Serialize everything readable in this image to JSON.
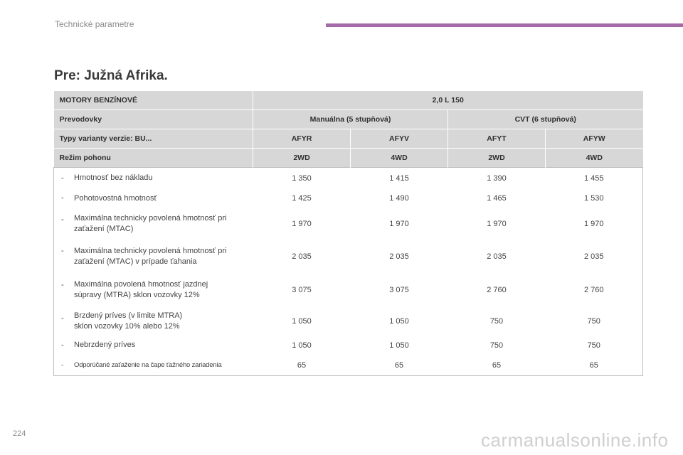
{
  "header": {
    "section": "Technické parametre",
    "accent_color": "#a56aa8"
  },
  "heading": "Pre: Južná Afrika.",
  "table": {
    "engine_label": "MOTORY BENZÍNOVÉ",
    "engine_value": "2,0 L 150",
    "gearbox_label": "Prevodovky",
    "gearboxes": [
      "Manuálna (5 stupňová)",
      "CVT (6 stupňová)"
    ],
    "variant_label": "Typy varianty verzie: BU...",
    "variants": [
      "AFYR",
      "AFYV",
      "AFYT",
      "AFYW"
    ],
    "drive_label": "Režim pohonu",
    "drives": [
      "2WD",
      "4WD",
      "2WD",
      "4WD"
    ],
    "rows": [
      {
        "label": "Hmotnosť bez nákladu",
        "values": [
          "1 350",
          "1 415",
          "1 390",
          "1 455"
        ]
      },
      {
        "label": "Pohotovostná hmotnosť",
        "values": [
          "1 425",
          "1 490",
          "1 465",
          "1 530"
        ]
      },
      {
        "label_line1": "Maximálna technicky povolená hmotnosť pri",
        "label_line2": "zaťažení (MTAC)",
        "values": [
          "1 970",
          "1 970",
          "1 970",
          "1 970"
        ]
      },
      {
        "label_line1": "Maximálna technicky povolená hmotnosť pri",
        "label_line2": "zaťažení (MTAC) v prípade ťahania",
        "values": [
          "2 035",
          "2 035",
          "2 035",
          "2 035"
        ]
      },
      {
        "label_line1": "Maximálna povolená hmotnosť jazdnej",
        "label_line2": "súpravy (MTRA) sklon vozovky 12%",
        "values": [
          "3 075",
          "3 075",
          "2 760",
          "2 760"
        ]
      },
      {
        "label_line1": "Brzdený príves (v limite MTRA)",
        "label_line2": "sklon vozovky 10% alebo 12%",
        "values": [
          "1 050",
          "1 050",
          "750",
          "750"
        ]
      },
      {
        "label": "Nebrzdený príves",
        "values": [
          "1 050",
          "1 050",
          "750",
          "750"
        ]
      },
      {
        "label": "Odporúčané zaťaženie na čape ťažného zariadenia",
        "values": [
          "65",
          "65",
          "65",
          "65"
        ]
      }
    ]
  },
  "page_number": "224",
  "watermark": "carmanualsonline.info"
}
